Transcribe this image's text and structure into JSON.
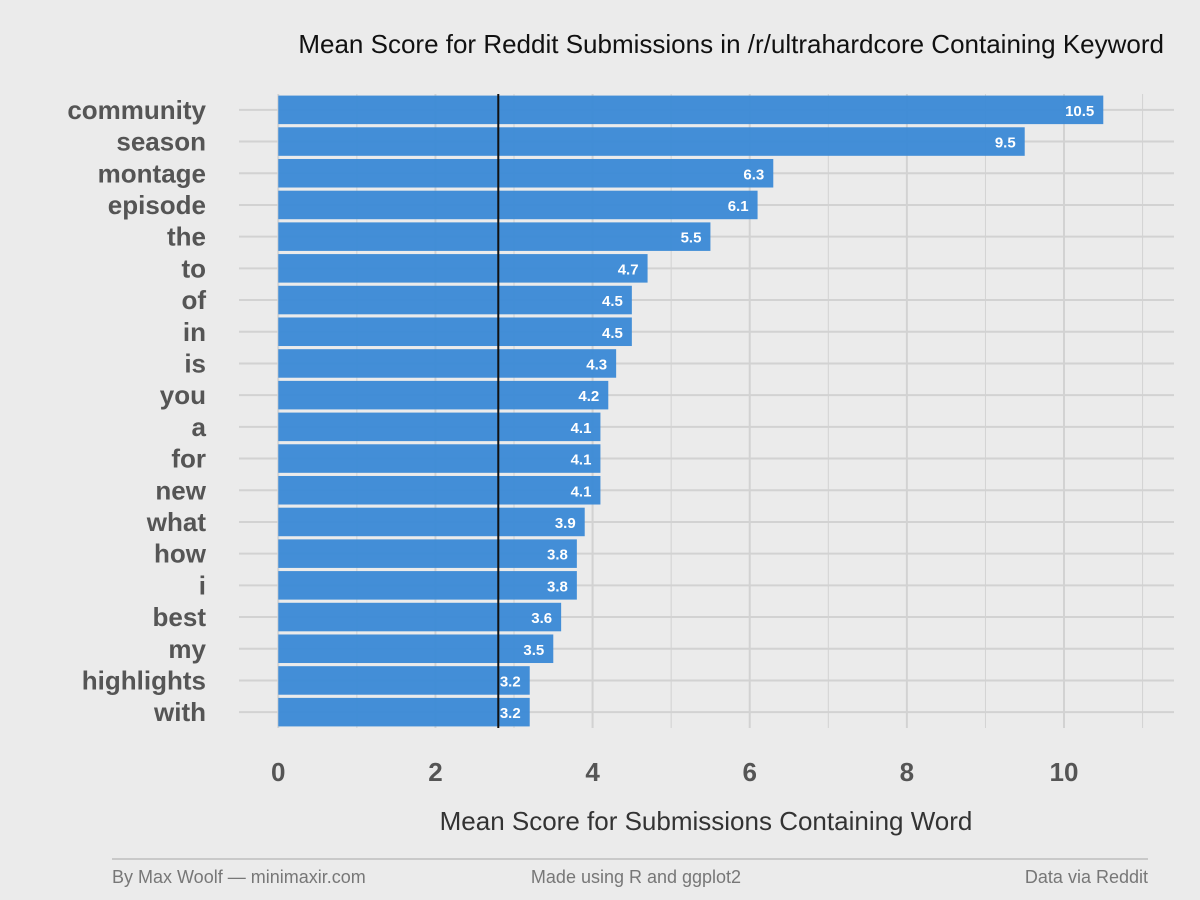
{
  "chart_data": {
    "type": "bar",
    "orientation": "horizontal",
    "title": "Mean Score for Reddit Submissions in /r/ultrahardcore Containing Keyword",
    "xlabel": "Mean Score for Submissions Containing Word",
    "ylabel": "",
    "categories": [
      "community",
      "season",
      "montage",
      "episode",
      "the",
      "to",
      "of",
      "in",
      "is",
      "you",
      "a",
      "for",
      "new",
      "what",
      "how",
      "i",
      "best",
      "my",
      "highlights",
      "with"
    ],
    "values": [
      10.5,
      9.5,
      6.3,
      6.1,
      5.5,
      4.7,
      4.5,
      4.5,
      4.3,
      4.2,
      4.1,
      4.1,
      4.1,
      3.9,
      3.8,
      3.8,
      3.6,
      3.5,
      3.2,
      3.2
    ],
    "data_labels": [
      "10.5",
      "9.5",
      "6.3",
      "6.1",
      "5.5",
      "4.7",
      "4.5",
      "4.5",
      "4.3",
      "4.2",
      "4.1",
      "4.1",
      "4.1",
      "3.9",
      "3.8",
      "3.8",
      "3.6",
      "3.5",
      "3.2",
      "3.2"
    ],
    "xlim": [
      -0.5,
      11.4
    ],
    "xticks": [
      0,
      2,
      4,
      6,
      8,
      10
    ],
    "reference_line": 2.8,
    "grid": true,
    "bar_color": "#3a89d6",
    "reference_line_color": "#111111",
    "background_color": "#ebebeb",
    "grid_color": "#d2d2d2"
  },
  "footer": {
    "left": "By Max Woolf — minimaxir.com",
    "center": "Made using R and ggplot2",
    "right": "Data via Reddit"
  }
}
